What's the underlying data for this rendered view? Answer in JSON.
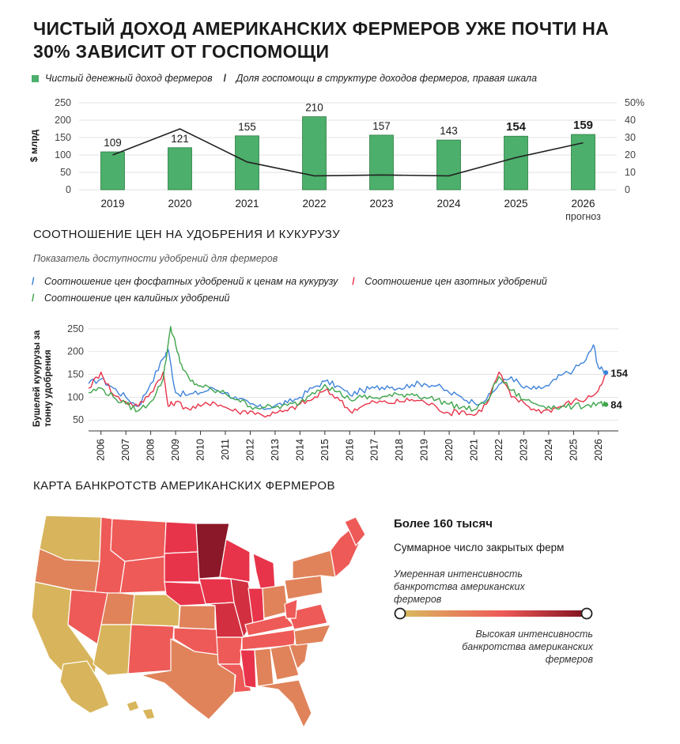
{
  "title": "Чистый доход американских фермеров уже почти на 30% зависит от госпомощи",
  "colors": {
    "bar": "#4caf6b",
    "bar_stroke": "#2f7d45",
    "line_dark": "#222222",
    "phosphate": "#3f83d9",
    "nitrogen": "#e8344a",
    "potash": "#3fa54c",
    "grad_low": "#d8bc5f",
    "grad_mid": "#ee5a57",
    "grad_high": "#7f1120"
  },
  "chart_data": [
    {
      "type": "bar",
      "legend": [
        {
          "name": "Чистый денежный доход фермеров",
          "icon": "square"
        },
        {
          "name": "Доля госпомощи в структуре доходов фермеров, правая шкала",
          "icon": "line"
        }
      ],
      "ylabel": "$ млрд",
      "y_ticks": [
        "250",
        "200",
        "150",
        "100",
        "50",
        "0"
      ],
      "y2_ticks": [
        "50%",
        "40",
        "30",
        "20",
        "10",
        "0"
      ],
      "ylim": [
        0,
        250
      ],
      "y2lim": [
        0,
        50
      ],
      "categories": [
        "2019",
        "2020",
        "2021",
        "2022",
        "2023",
        "2024",
        "2025",
        "2026"
      ],
      "category_notes": [
        "",
        "",
        "",
        "",
        "",
        "",
        "",
        "прогноз"
      ],
      "series": [
        {
          "name": "Чистый денежный доход фермеров",
          "values": [
            109,
            121,
            155,
            210,
            157,
            143,
            154,
            159
          ],
          "labels": [
            "109",
            "121",
            "155",
            "210",
            "157",
            "143",
            "154",
            "159"
          ]
        },
        {
          "name": "Доля госпомощи в структуре доходов фермеров, правая шкала",
          "axis": "right",
          "values": [
            20,
            35,
            16,
            8,
            8.5,
            8,
            18.5,
            27
          ]
        }
      ]
    },
    {
      "type": "line",
      "title": "Соотношение цен на удобрения и кукурузу",
      "subtitle": "Показатель доступности удобрений для фермеров",
      "ylabel": "Бушелей кукурузы за тонну удобрения",
      "y_ticks": [
        "250",
        "200",
        "150",
        "100",
        "50"
      ],
      "ylim": [
        40,
        262
      ],
      "xlim": [
        2005.5,
        2026.8
      ],
      "x_ticks": [
        "2006",
        "2007",
        "2008",
        "2009",
        "2010",
        "2011",
        "2012",
        "2013",
        "2014",
        "2015",
        "2016",
        "2017",
        "2018",
        "2019",
        "2020",
        "2021",
        "2022",
        "2023",
        "2024",
        "2025",
        "2026"
      ],
      "end_labels": [
        {
          "series": "phosphate",
          "text": "154"
        },
        {
          "series": "potash",
          "text": "84"
        }
      ],
      "series": [
        {
          "key": "phosphate",
          "name": "Соотношение цен фосфатных удобрений к ценам на кукурузу",
          "x": [
            2005.5,
            2006,
            2006.5,
            2007,
            2007.5,
            2008,
            2008.5,
            2008.7,
            2009,
            2009.5,
            2010,
            2010.5,
            2011,
            2011.5,
            2012,
            2012.5,
            2013,
            2013.5,
            2014,
            2014.5,
            2015,
            2015.5,
            2016,
            2016.5,
            2017,
            2017.5,
            2018,
            2018.5,
            2019,
            2019.5,
            2020,
            2020.5,
            2021,
            2021.5,
            2022,
            2022.5,
            2023,
            2023.5,
            2024,
            2024.5,
            2025,
            2025.5,
            2025.8,
            2026,
            2026.3
          ],
          "y": [
            130,
            140,
            120,
            100,
            80,
            130,
            185,
            205,
            110,
            105,
            110,
            120,
            110,
            95,
            85,
            75,
            82,
            88,
            100,
            120,
            135,
            125,
            105,
            115,
            120,
            125,
            120,
            128,
            130,
            125,
            110,
            100,
            88,
            95,
            128,
            145,
            120,
            118,
            125,
            148,
            160,
            182,
            215,
            165,
            154
          ]
        },
        {
          "key": "nitrogen",
          "name": "Соотношение цен азотных удобрений",
          "x": [
            2005.5,
            2006,
            2006.5,
            2007,
            2007.5,
            2008,
            2008.5,
            2008.7,
            2009,
            2009.5,
            2010,
            2010.5,
            2011,
            2011.5,
            2012,
            2012.5,
            2013,
            2013.5,
            2014,
            2014.5,
            2015,
            2015.5,
            2016,
            2016.5,
            2017,
            2017.5,
            2018,
            2018.5,
            2019,
            2019.5,
            2020,
            2020.5,
            2021,
            2021.5,
            2022,
            2022.5,
            2023,
            2023.5,
            2024,
            2024.5,
            2025,
            2025.5,
            2026,
            2026.3
          ],
          "y": [
            120,
            155,
            105,
            90,
            80,
            110,
            155,
            80,
            90,
            75,
            80,
            90,
            78,
            68,
            70,
            60,
            65,
            70,
            85,
            95,
            115,
            100,
            70,
            80,
            90,
            88,
            90,
            95,
            90,
            78,
            65,
            70,
            60,
            85,
            155,
            100,
            88,
            70,
            72,
            80,
            92,
            95,
            115,
            150
          ]
        },
        {
          "key": "potash",
          "name": "Соотношение цен калийных удобрений",
          "x": [
            2005.5,
            2006,
            2006.5,
            2007,
            2007.5,
            2008,
            2008.5,
            2008.8,
            2009,
            2009.3,
            2009.6,
            2010,
            2010.5,
            2011,
            2011.5,
            2012,
            2012.5,
            2013,
            2013.5,
            2014,
            2014.5,
            2015,
            2015.5,
            2016,
            2016.5,
            2017,
            2017.5,
            2018,
            2018.5,
            2019,
            2019.5,
            2020,
            2020.5,
            2021,
            2021.5,
            2022,
            2022.5,
            2023,
            2023.5,
            2024,
            2024.5,
            2025,
            2025.5,
            2026,
            2026.3
          ],
          "y": [
            110,
            120,
            100,
            85,
            70,
            90,
            140,
            255,
            215,
            160,
            135,
            125,
            115,
            108,
            95,
            80,
            78,
            78,
            82,
            88,
            110,
            128,
            112,
            95,
            100,
            98,
            102,
            105,
            108,
            100,
            95,
            85,
            78,
            72,
            90,
            145,
            115,
            95,
            85,
            80,
            78,
            80,
            82,
            88,
            84
          ]
        }
      ]
    }
  ],
  "map": {
    "title": "Карта банкротств американских фермеров",
    "headline": "Более 160 тысяч",
    "headline_sub": "Суммарное число закрытых ферм",
    "scale_low": "Умеренная интенсивность банкротства американских фермеров",
    "scale_high": "Высокая интенсивность банкротства американских фермеров"
  }
}
